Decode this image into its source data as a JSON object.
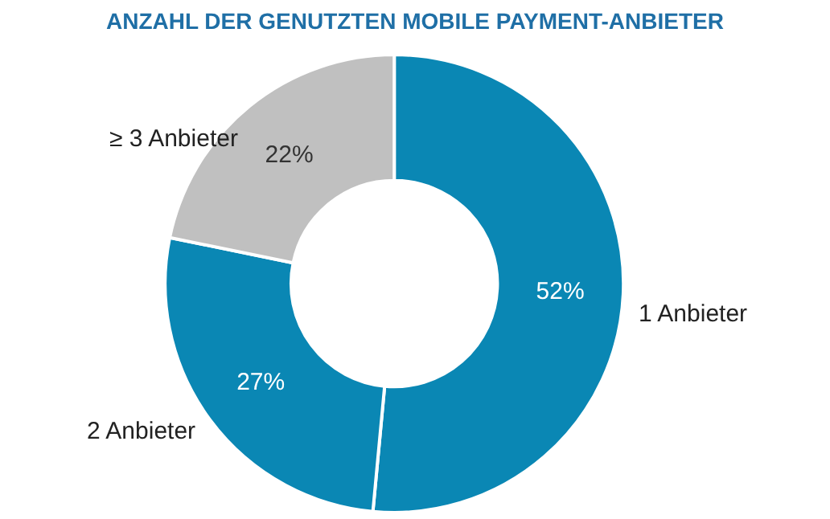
{
  "chart_data": {
    "type": "donut",
    "title": "ANZAHL DER GENUTZTEN MOBILE PAYMENT-ANBIETER",
    "categories": [
      "1 Anbieter",
      "2 Anbieter",
      "≥ 3 Anbieter"
    ],
    "values": [
      52,
      27,
      22
    ],
    "value_labels": [
      "52%",
      "27%",
      "22%"
    ],
    "colors": [
      "#0a87b4",
      "#0a87b4",
      "#c0c0c0"
    ],
    "legend": false
  }
}
